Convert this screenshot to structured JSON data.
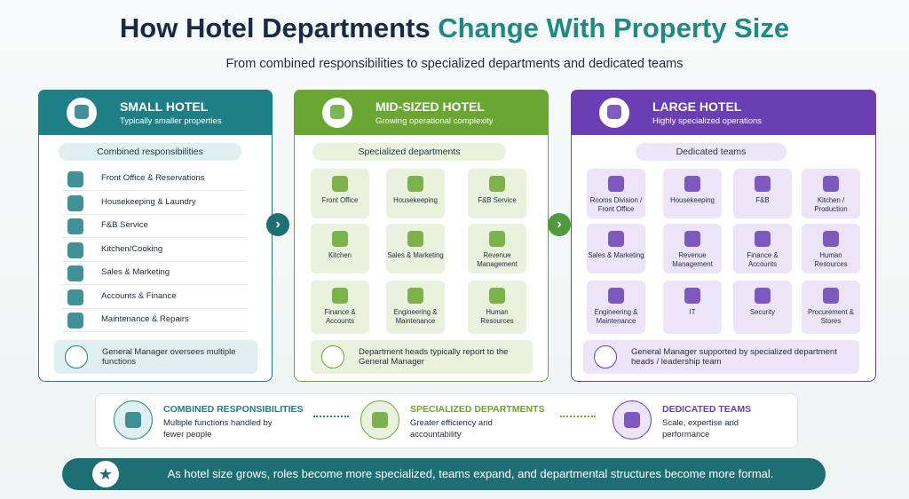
{
  "header": {
    "title_part1": "How Hotel Departments",
    "title_part2": "Change With Property Size",
    "subtitle": "From combined responsibilities to specialized departments and dedicated teams"
  },
  "panels": [
    {
      "name": "SMALL HOTEL",
      "tagline": "Typically smaller properties",
      "section": "Combined responsibilities",
      "items": [
        "Front Office & Reservations",
        "Housekeeping & Laundry",
        "F&B Service",
        "Kitchen/Cooking",
        "Sales & Marketing",
        "Accounts & Finance",
        "Maintenance & Repairs"
      ],
      "note": "General Manager oversees multiple functions"
    },
    {
      "name": "MID-SIZED HOTEL",
      "tagline": "Growing operational complexity",
      "section": "Specialized departments",
      "items": [
        "Front Office",
        "Housekeeping",
        "F&B Service",
        "Kitchen",
        "Sales & Marketing",
        "Revenue Management",
        "Finance & Accounts",
        "Engineering & Maintenance",
        "Human Resources"
      ],
      "note": "Department heads typically report to the General Manager"
    },
    {
      "name": "LARGE HOTEL",
      "tagline": "Highly specialized operations",
      "section": "Dedicated teams",
      "items": [
        "Rooms Division / Front Office",
        "Housekeeping",
        "F&B",
        "Kitchen / Production",
        "Sales & Marketing",
        "Revenue Management",
        "Finance & Accounts",
        "Human Resources",
        "Engineering & Maintenance",
        "IT",
        "Security",
        "Procurement & Stores"
      ],
      "note": "General Manager supported by specialized department heads / leadership team"
    }
  ],
  "flow": [
    {
      "title": "COMBINED RESPONSIBILITIES",
      "text": "Multiple functions handled by fewer people"
    },
    {
      "title": "SPECIALIZED DEPARTMENTS",
      "text": "Greater efficiency and accountability"
    },
    {
      "title": "DEDICATED TEAMS",
      "text": "Scale, expertise and performance"
    }
  ],
  "banner": "As hotel size grows, roles become more specialized, teams expand, and departmental structures become more formal."
}
